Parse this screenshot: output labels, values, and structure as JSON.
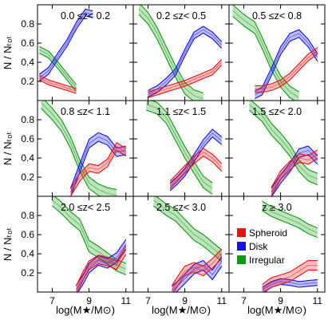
{
  "chart_data": {
    "type": "line",
    "layout": "3x3 grid",
    "xlabel": "log(M★/M⊙)",
    "ylabel": "N / Nₜₒₜ",
    "xlim": [
      6.2,
      11.4
    ],
    "ylim": [
      0.0,
      1.0
    ],
    "xticks": [
      7,
      9,
      11
    ],
    "yticks": [
      0.2,
      0.4,
      0.6,
      0.8
    ],
    "legend": {
      "placement": "panel-9-lower-left",
      "entries": [
        {
          "key": "spheroid",
          "label": "Spheroid",
          "color": "#ee1111"
        },
        {
          "key": "disk",
          "label": "Disk",
          "color": "#1111ee"
        },
        {
          "key": "irregular",
          "label": "Irregular",
          "color": "#119911"
        }
      ]
    },
    "panels": [
      {
        "label": "0.0  ≤z< 0.2",
        "spheroid": {
          "x": [
            6.3,
            6.8,
            7.3,
            7.8,
            8.3
          ],
          "y": [
            0.24,
            0.19,
            0.16,
            0.13,
            0.1
          ],
          "err": 0.025
        },
        "disk": {
          "x": [
            6.3,
            6.8,
            7.3,
            7.8,
            8.3,
            8.8,
            9.2
          ],
          "y": [
            0.24,
            0.31,
            0.46,
            0.6,
            0.78,
            0.92,
            0.9
          ],
          "err": 0.035
        },
        "irregular": {
          "x": [
            6.3,
            6.8,
            7.3,
            7.8,
            8.3
          ],
          "y": [
            0.53,
            0.48,
            0.37,
            0.25,
            0.13
          ],
          "err": 0.035
        }
      },
      {
        "label": "0.2  ≤z< 0.5",
        "spheroid": {
          "x": [
            7.0,
            7.5,
            8.0,
            8.5,
            9.0,
            9.5,
            10.0,
            10.5,
            11.0
          ],
          "y": [
            0.06,
            0.09,
            0.12,
            0.15,
            0.18,
            0.22,
            0.26,
            0.3,
            0.4
          ],
          "err": 0.03
        },
        "disk": {
          "x": [
            7.0,
            7.5,
            8.0,
            8.5,
            9.0,
            9.5,
            10.0,
            10.5,
            11.0
          ],
          "y": [
            0.07,
            0.12,
            0.2,
            0.3,
            0.5,
            0.68,
            0.74,
            0.68,
            0.58
          ],
          "err": 0.035
        },
        "irregular": {
          "x": [
            6.5,
            7.0,
            7.5,
            8.0,
            8.5,
            9.0,
            9.5,
            10.0
          ],
          "y": [
            0.96,
            0.86,
            0.7,
            0.5,
            0.3,
            0.13,
            0.05,
            0.02
          ],
          "err": 0.06
        }
      },
      {
        "label": "0.5  ≤z< 0.8",
        "spheroid": {
          "x": [
            7.6,
            8.0,
            8.5,
            9.0,
            9.5,
            10.0,
            10.5,
            11.0
          ],
          "y": [
            0.12,
            0.12,
            0.14,
            0.18,
            0.25,
            0.35,
            0.45,
            0.52
          ],
          "err": 0.035
        },
        "disk": {
          "x": [
            7.6,
            8.0,
            8.5,
            9.0,
            9.5,
            10.0,
            10.5,
            11.0
          ],
          "y": [
            0.06,
            0.1,
            0.3,
            0.52,
            0.66,
            0.7,
            0.6,
            0.45
          ],
          "err": 0.04
        },
        "irregular": {
          "x": [
            6.4,
            7.0,
            7.6,
            8.0,
            8.5,
            9.0,
            9.5,
            10.0
          ],
          "y": [
            0.94,
            0.84,
            0.76,
            0.6,
            0.38,
            0.2,
            0.09,
            0.03
          ],
          "err": 0.06
        }
      },
      {
        "label": "0.8  ≤z< 1.1",
        "spheroid": {
          "x": [
            8.0,
            8.5,
            9.0,
            9.5,
            10.0,
            10.5,
            11.0
          ],
          "y": [
            0.04,
            0.2,
            0.3,
            0.28,
            0.35,
            0.52,
            0.46
          ],
          "err": 0.04
        },
        "disk": {
          "x": [
            8.0,
            8.5,
            9.0,
            9.5,
            10.0,
            10.5,
            11.0
          ],
          "y": [
            0.04,
            0.3,
            0.55,
            0.62,
            0.58,
            0.46,
            0.48
          ],
          "err": 0.045
        },
        "irregular": {
          "x": [
            6.4,
            7.0,
            7.5,
            8.0,
            8.5,
            9.0,
            9.5,
            10.0,
            10.5
          ],
          "y": [
            0.98,
            0.86,
            0.74,
            0.56,
            0.32,
            0.14,
            0.07,
            0.03,
            0.01
          ],
          "err": 0.06
        }
      },
      {
        "label": "1.1  ≤z< 1.5",
        "spheroid": {
          "x": [
            8.2,
            8.5,
            9.0,
            9.5,
            10.0,
            10.5,
            11.0
          ],
          "y": [
            0.12,
            0.18,
            0.28,
            0.38,
            0.46,
            0.4,
            0.3
          ],
          "err": 0.04
        },
        "disk": {
          "x": [
            8.2,
            8.5,
            9.0,
            9.5,
            10.0,
            10.5,
            11.0
          ],
          "y": [
            0.1,
            0.15,
            0.25,
            0.4,
            0.55,
            0.66,
            0.58
          ],
          "err": 0.04
        },
        "irregular": {
          "x": [
            6.9,
            7.5,
            8.0,
            8.5,
            9.0,
            9.5,
            10.0,
            10.5
          ],
          "y": [
            0.96,
            0.92,
            0.82,
            0.64,
            0.46,
            0.3,
            0.15,
            0.08
          ],
          "err": 0.06
        }
      },
      {
        "label": "1.5  ≤z< 2.0",
        "spheroid": {
          "x": [
            8.5,
            9.0,
            9.5,
            10.0,
            10.5,
            11.0
          ],
          "y": [
            0.05,
            0.22,
            0.32,
            0.4,
            0.38,
            0.44
          ],
          "err": 0.045
        },
        "disk": {
          "x": [
            8.5,
            9.0,
            9.5,
            10.0,
            10.5,
            11.0
          ],
          "y": [
            0.04,
            0.18,
            0.3,
            0.45,
            0.48,
            0.38
          ],
          "err": 0.045
        },
        "irregular": {
          "x": [
            7.3,
            8.0,
            8.5,
            9.0,
            9.5,
            10.0,
            10.5,
            11.0
          ],
          "y": [
            0.96,
            0.84,
            0.7,
            0.6,
            0.48,
            0.32,
            0.22,
            0.18
          ],
          "err": 0.06
        }
      },
      {
        "label": "2.0  ≤z< 2.5",
        "spheroid": {
          "x": [
            8.3,
            8.7,
            9.0,
            9.5,
            10.0,
            10.5,
            11.0
          ],
          "y": [
            0.02,
            0.18,
            0.28,
            0.34,
            0.32,
            0.28,
            0.44
          ],
          "err": 0.045
        },
        "disk": {
          "x": [
            8.3,
            8.7,
            9.0,
            9.5,
            10.0,
            10.5,
            11.0
          ],
          "y": [
            0.02,
            0.14,
            0.25,
            0.33,
            0.3,
            0.36,
            0.5
          ],
          "err": 0.05
        },
        "irregular": {
          "x": [
            7.0,
            7.5,
            8.0,
            8.5,
            9.0,
            9.5,
            10.0,
            10.5,
            11.0
          ],
          "y": [
            0.96,
            0.88,
            0.78,
            0.7,
            0.48,
            0.42,
            0.35,
            0.28,
            0.24
          ],
          "err": 0.06
        }
      },
      {
        "label": "2.5  ≤z< 3.0",
        "spheroid": {
          "x": [
            8.3,
            8.7,
            9.0,
            9.5,
            10.0,
            10.5,
            11.0
          ],
          "y": [
            0.02,
            0.14,
            0.22,
            0.26,
            0.22,
            0.3,
            0.4
          ],
          "err": 0.05
        },
        "disk": {
          "x": [
            8.3,
            8.7,
            9.0,
            9.5,
            10.0,
            10.5,
            11.0
          ],
          "y": [
            0.01,
            0.08,
            0.14,
            0.24,
            0.28,
            0.18,
            0.32
          ],
          "err": 0.05
        },
        "irregular": {
          "x": [
            7.3,
            8.0,
            8.5,
            9.0,
            9.5,
            10.0,
            10.5,
            11.0
          ],
          "y": [
            0.96,
            0.86,
            0.8,
            0.7,
            0.6,
            0.54,
            0.46,
            0.38
          ],
          "err": 0.06
        }
      },
      {
        "label": "z ≥ 3.0",
        "spheroid": {
          "x": [
            8.0,
            8.5,
            9.0,
            9.5,
            10.0,
            10.5,
            11.0
          ],
          "y": [
            0.03,
            0.1,
            0.13,
            0.16,
            0.22,
            0.28,
            0.28
          ],
          "err": 0.05
        },
        "disk": {
          "x": [
            8.0,
            8.5,
            9.0,
            9.5,
            10.0,
            10.5,
            11.0
          ],
          "y": [
            0.02,
            0.08,
            0.11,
            0.1,
            0.08,
            0.09,
            0.1
          ],
          "err": 0.03
        },
        "irregular": {
          "x": [
            8.0,
            8.5,
            9.0,
            9.5,
            10.0,
            10.5,
            11.0
          ],
          "y": [
            0.9,
            0.84,
            0.8,
            0.76,
            0.72,
            0.66,
            0.62
          ],
          "err": 0.05
        }
      }
    ]
  }
}
